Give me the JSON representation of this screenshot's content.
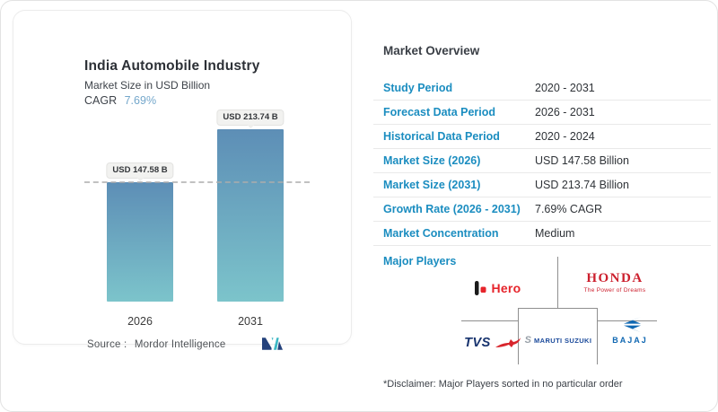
{
  "card": {
    "title": "India Automobile Industry",
    "subtitle": "Market Size in USD Billion",
    "cagr_label": "CAGR",
    "cagr_value": "7.69%",
    "source_label": "Source :",
    "source_name": "Mordor Intelligence"
  },
  "chart_data": {
    "type": "bar",
    "title": "India Automobile Industry",
    "subtitle": "Market Size in USD Billion",
    "unit": "USD Billion",
    "categories": [
      "2026",
      "2031"
    ],
    "values": [
      147.58,
      213.74
    ],
    "bar_labels": [
      "USD 147.58 B",
      "USD 213.74 B"
    ],
    "cagr_pct": 7.69,
    "reference_line_value": 147.58,
    "bar_gradient_top": "#5d8eb6",
    "bar_gradient_bottom": "#7cc4cb",
    "grid": "off",
    "legend": "none"
  },
  "overview": {
    "heading": "Market Overview",
    "rows": [
      {
        "label": "Study Period",
        "value": "2020 - 2031"
      },
      {
        "label": "Forecast Data Period",
        "value": "2026 - 2031"
      },
      {
        "label": "Historical Data Period",
        "value": "2020 - 2024"
      },
      {
        "label": "Market Size (2026)",
        "value": "USD 147.58 Billion"
      },
      {
        "label": "Market Size (2031)",
        "value": "USD 213.74 Billion"
      },
      {
        "label": "Growth Rate (2026 - 2031)",
        "value": "7.69% CAGR"
      },
      {
        "label": "Market Concentration",
        "value": "Medium"
      }
    ],
    "major_players_label": "Major Players",
    "disclaimer": "*Disclaimer: Major Players sorted in no particular order"
  },
  "players": {
    "hero": "Hero",
    "honda": "HONDA",
    "honda_tagline": "The Power of Dreams",
    "tvs": "TVS",
    "maruti": "MARUTI SUZUKI",
    "bajaj": "BAJAJ"
  },
  "colors": {
    "label_blue": "#1b8dc0",
    "text_dark": "#2f3338",
    "cagr_blue": "#74a7cb",
    "hero_red": "#e6242b",
    "honda_red": "#cc1f2d",
    "tvs_navy": "#17336e",
    "tvs_horse_red": "#d8252c",
    "maruti_blue": "#1b4a9b",
    "bajaj_blue": "#0f67b2",
    "mordor_navy": "#24427c",
    "mordor_teal": "#3bb7c4"
  }
}
